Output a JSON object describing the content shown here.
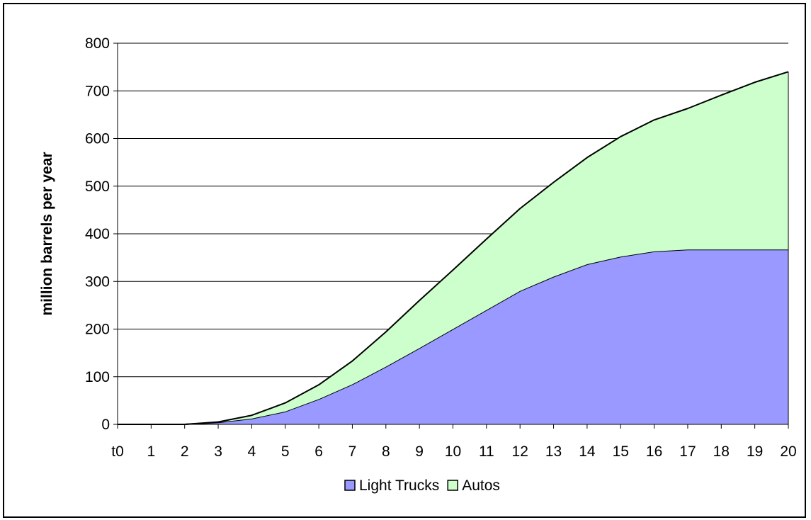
{
  "chart_data": {
    "type": "area",
    "stacked": true,
    "title": "",
    "xlabel": "",
    "ylabel": "million barrels per year",
    "ylim": [
      0,
      800
    ],
    "yticks": [
      0,
      100,
      200,
      300,
      400,
      500,
      600,
      700,
      800
    ],
    "grid": "horizontal",
    "legend_position": "bottom",
    "categories": [
      "t0",
      "1",
      "2",
      "3",
      "4",
      "5",
      "6",
      "7",
      "8",
      "9",
      "10",
      "11",
      "12",
      "13",
      "14",
      "15",
      "16",
      "17",
      "18",
      "19",
      "20"
    ],
    "series": [
      {
        "name": "Light Trucks",
        "color": "#9999ff",
        "values": [
          0,
          0,
          0,
          4,
          12,
          27,
          53,
          84,
          121,
          160,
          200,
          240,
          280,
          310,
          336,
          352,
          363,
          367,
          367,
          367,
          367
        ]
      },
      {
        "name": "Autos",
        "color": "#ccffcc",
        "values": [
          0,
          0,
          0,
          1,
          7,
          18,
          30,
          49,
          73,
          100,
          124,
          149,
          173,
          198,
          224,
          252,
          276,
          296,
          324,
          351,
          373
        ]
      }
    ]
  }
}
